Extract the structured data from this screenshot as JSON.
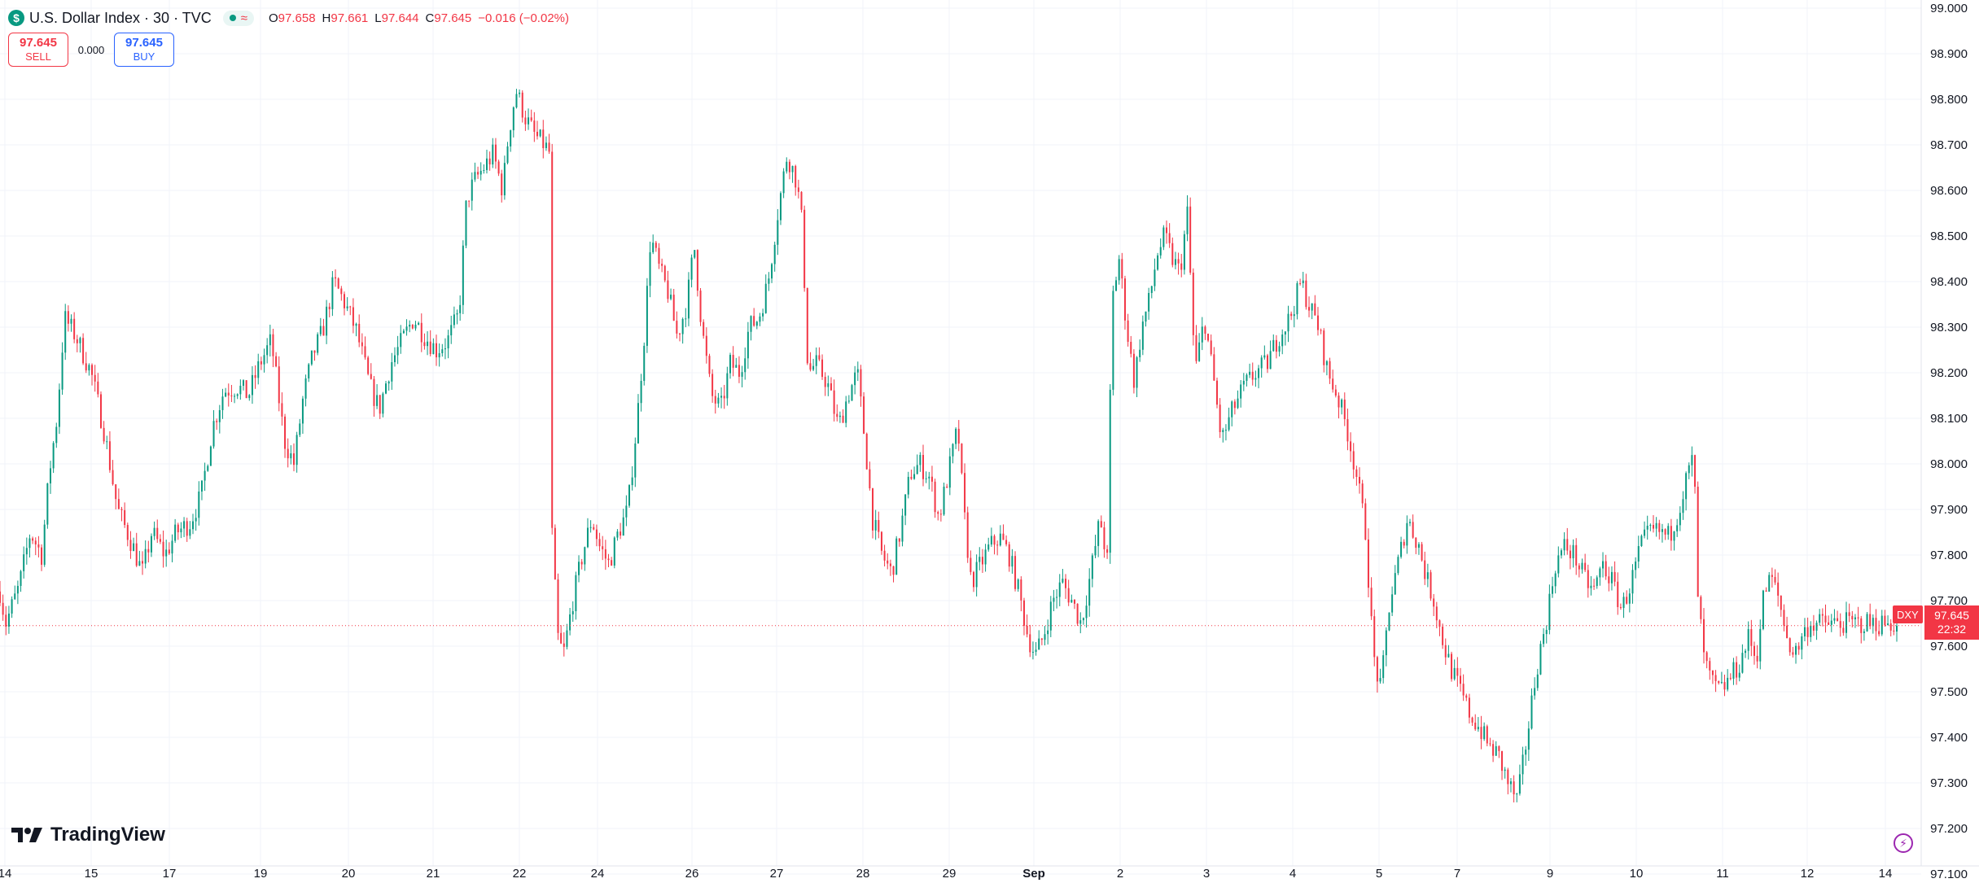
{
  "header": {
    "symbol_badge": "$",
    "title": "U.S. Dollar Index · 30 · TVC",
    "status_wave": "≈",
    "ohlc": {
      "o_label": "O",
      "o": "97.658",
      "h_label": "H",
      "h": "97.661",
      "l_label": "L",
      "l": "97.644",
      "c_label": "C",
      "c": "97.645",
      "change": "−0.016 (−0.02%)"
    }
  },
  "trade": {
    "sell_price": "97.645",
    "sell_label": "SELL",
    "spread": "0.000",
    "buy_price": "97.645",
    "buy_label": "BUY"
  },
  "last_price": {
    "symbol": "DXY",
    "price": "97.645",
    "countdown": "22:32"
  },
  "branding": {
    "name": "TradingView"
  },
  "colors": {
    "up": "#089981",
    "down": "#f23645",
    "grid": "#f0f3fa",
    "axis_text": "#131722"
  },
  "chart_data": {
    "type": "candlestick",
    "interval": "30",
    "last_close": 97.645,
    "y_ticks": [
      97.1,
      97.2,
      97.3,
      97.4,
      97.5,
      97.6,
      97.7,
      97.8,
      97.9,
      98.0,
      98.1,
      98.2,
      98.3,
      98.4,
      98.5,
      98.6,
      98.7,
      98.8,
      98.9,
      99.0
    ],
    "y_tick_labels": [
      "97.100",
      "97.200",
      "97.300",
      "97.400",
      "97.500",
      "97.600",
      "97.700",
      "97.800",
      "97.900",
      "98.000",
      "98.100",
      "98.200",
      "98.300",
      "98.400",
      "98.500",
      "98.600",
      "98.700",
      "98.800",
      "98.900",
      "99.000"
    ],
    "x_tick_labels": [
      "14",
      "15",
      "17",
      "19",
      "20",
      "21",
      "22",
      "24",
      "26",
      "27",
      "28",
      "29",
      "Sep",
      "2",
      "3",
      "4",
      "5",
      "7",
      "9",
      "10",
      "11",
      "12",
      "14"
    ],
    "grid": true,
    "path_points": [
      [
        0.0,
        97.72
      ],
      [
        0.003,
        97.65
      ],
      [
        0.01,
        97.73
      ],
      [
        0.016,
        97.85
      ],
      [
        0.022,
        97.8
      ],
      [
        0.026,
        97.98
      ],
      [
        0.03,
        98.1
      ],
      [
        0.034,
        98.32
      ],
      [
        0.04,
        98.28
      ],
      [
        0.048,
        98.2
      ],
      [
        0.055,
        98.07
      ],
      [
        0.062,
        97.9
      ],
      [
        0.07,
        97.82
      ],
      [
        0.075,
        97.76
      ],
      [
        0.08,
        97.85
      ],
      [
        0.087,
        97.8
      ],
      [
        0.093,
        97.85
      ],
      [
        0.1,
        97.87
      ],
      [
        0.106,
        97.93
      ],
      [
        0.112,
        98.08
      ],
      [
        0.118,
        98.16
      ],
      [
        0.125,
        98.17
      ],
      [
        0.131,
        98.15
      ],
      [
        0.137,
        98.22
      ],
      [
        0.143,
        98.27
      ],
      [
        0.15,
        98.05
      ],
      [
        0.155,
        98.0
      ],
      [
        0.16,
        98.15
      ],
      [
        0.165,
        98.24
      ],
      [
        0.17,
        98.29
      ],
      [
        0.176,
        98.4
      ],
      [
        0.182,
        98.35
      ],
      [
        0.188,
        98.29
      ],
      [
        0.195,
        98.17
      ],
      [
        0.2,
        98.12
      ],
      [
        0.206,
        98.22
      ],
      [
        0.212,
        98.27
      ],
      [
        0.218,
        98.32
      ],
      [
        0.224,
        98.28
      ],
      [
        0.23,
        98.25
      ],
      [
        0.236,
        98.27
      ],
      [
        0.242,
        98.33
      ],
      [
        0.246,
        98.58
      ],
      [
        0.25,
        98.62
      ],
      [
        0.255,
        98.65
      ],
      [
        0.26,
        98.68
      ],
      [
        0.265,
        98.6
      ],
      [
        0.268,
        98.72
      ],
      [
        0.272,
        98.82
      ],
      [
        0.277,
        98.76
      ],
      [
        0.282,
        98.72
      ],
      [
        0.287,
        98.7
      ],
      [
        0.29,
        98.68
      ],
      [
        0.291,
        97.85
      ],
      [
        0.294,
        97.62
      ],
      [
        0.297,
        97.58
      ],
      [
        0.302,
        97.7
      ],
      [
        0.307,
        97.8
      ],
      [
        0.312,
        97.88
      ],
      [
        0.316,
        97.82
      ],
      [
        0.321,
        97.78
      ],
      [
        0.326,
        97.85
      ],
      [
        0.331,
        97.9
      ],
      [
        0.336,
        98.1
      ],
      [
        0.34,
        98.3
      ],
      [
        0.343,
        98.5
      ],
      [
        0.348,
        98.42
      ],
      [
        0.352,
        98.38
      ],
      [
        0.357,
        98.28
      ],
      [
        0.362,
        98.35
      ],
      [
        0.366,
        98.48
      ],
      [
        0.37,
        98.3
      ],
      [
        0.375,
        98.15
      ],
      [
        0.38,
        98.12
      ],
      [
        0.385,
        98.22
      ],
      [
        0.39,
        98.2
      ],
      [
        0.395,
        98.3
      ],
      [
        0.4,
        98.32
      ],
      [
        0.405,
        98.4
      ],
      [
        0.41,
        98.55
      ],
      [
        0.415,
        98.68
      ],
      [
        0.42,
        98.62
      ],
      [
        0.423,
        98.52
      ],
      [
        0.426,
        98.2
      ],
      [
        0.43,
        98.22
      ],
      [
        0.436,
        98.18
      ],
      [
        0.442,
        98.08
      ],
      [
        0.447,
        98.15
      ],
      [
        0.452,
        98.2
      ],
      [
        0.456,
        98.05
      ],
      [
        0.46,
        97.88
      ],
      [
        0.465,
        97.8
      ],
      [
        0.47,
        97.76
      ],
      [
        0.475,
        97.86
      ],
      [
        0.48,
        97.98
      ],
      [
        0.485,
        98.0
      ],
      [
        0.49,
        97.97
      ],
      [
        0.495,
        97.88
      ],
      [
        0.5,
        97.98
      ],
      [
        0.505,
        98.08
      ],
      [
        0.508,
        97.9
      ],
      [
        0.512,
        97.74
      ],
      [
        0.517,
        97.78
      ],
      [
        0.522,
        97.82
      ],
      [
        0.527,
        97.84
      ],
      [
        0.532,
        97.8
      ],
      [
        0.537,
        97.72
      ],
      [
        0.542,
        97.62
      ],
      [
        0.546,
        97.58
      ],
      [
        0.55,
        97.62
      ],
      [
        0.555,
        97.7
      ],
      [
        0.56,
        97.74
      ],
      [
        0.565,
        97.7
      ],
      [
        0.57,
        97.65
      ],
      [
        0.575,
        97.76
      ],
      [
        0.58,
        97.88
      ],
      [
        0.584,
        97.78
      ],
      [
        0.586,
        98.35
      ],
      [
        0.59,
        98.45
      ],
      [
        0.594,
        98.3
      ],
      [
        0.598,
        98.18
      ],
      [
        0.602,
        98.3
      ],
      [
        0.606,
        98.36
      ],
      [
        0.61,
        98.46
      ],
      [
        0.614,
        98.5
      ],
      [
        0.618,
        98.45
      ],
      [
        0.622,
        98.42
      ],
      [
        0.626,
        98.55
      ],
      [
        0.63,
        98.2
      ],
      [
        0.635,
        98.32
      ],
      [
        0.64,
        98.18
      ],
      [
        0.644,
        98.05
      ],
      [
        0.65,
        98.12
      ],
      [
        0.656,
        98.17
      ],
      [
        0.662,
        98.2
      ],
      [
        0.668,
        98.22
      ],
      [
        0.674,
        98.28
      ],
      [
        0.68,
        98.32
      ],
      [
        0.686,
        98.4
      ],
      [
        0.69,
        98.35
      ],
      [
        0.695,
        98.3
      ],
      [
        0.7,
        98.2
      ],
      [
        0.705,
        98.15
      ],
      [
        0.71,
        98.08
      ],
      [
        0.715,
        97.98
      ],
      [
        0.72,
        97.85
      ],
      [
        0.724,
        97.58
      ],
      [
        0.728,
        97.5
      ],
      [
        0.732,
        97.68
      ],
      [
        0.737,
        97.78
      ],
      [
        0.742,
        97.88
      ],
      [
        0.748,
        97.82
      ],
      [
        0.752,
        97.75
      ],
      [
        0.756,
        97.7
      ],
      [
        0.76,
        97.62
      ],
      [
        0.765,
        97.55
      ],
      [
        0.77,
        97.5
      ],
      [
        0.775,
        97.45
      ],
      [
        0.78,
        97.42
      ],
      [
        0.785,
        97.38
      ],
      [
        0.79,
        97.36
      ],
      [
        0.795,
        97.3
      ],
      [
        0.8,
        97.26
      ],
      [
        0.805,
        97.4
      ],
      [
        0.81,
        97.55
      ],
      [
        0.815,
        97.65
      ],
      [
        0.82,
        97.78
      ],
      [
        0.825,
        97.82
      ],
      [
        0.83,
        97.8
      ],
      [
        0.835,
        97.75
      ],
      [
        0.84,
        97.72
      ],
      [
        0.845,
        97.78
      ],
      [
        0.85,
        97.74
      ],
      [
        0.855,
        97.68
      ],
      [
        0.86,
        97.74
      ],
      [
        0.865,
        97.82
      ],
      [
        0.87,
        97.85
      ],
      [
        0.875,
        97.85
      ],
      [
        0.88,
        97.84
      ],
      [
        0.885,
        97.9
      ],
      [
        0.89,
        97.98
      ],
      [
        0.893,
        98.02
      ],
      [
        0.895,
        97.72
      ],
      [
        0.898,
        97.58
      ],
      [
        0.902,
        97.52
      ],
      [
        0.907,
        97.5
      ],
      [
        0.912,
        97.53
      ],
      [
        0.917,
        97.56
      ],
      [
        0.922,
        97.62
      ],
      [
        0.926,
        97.57
      ],
      [
        0.93,
        97.72
      ],
      [
        0.934,
        97.75
      ],
      [
        0.938,
        97.7
      ],
      [
        0.942,
        97.62
      ],
      [
        0.946,
        97.58
      ],
      [
        0.95,
        97.62
      ],
      [
        0.954,
        97.65
      ]
    ]
  }
}
